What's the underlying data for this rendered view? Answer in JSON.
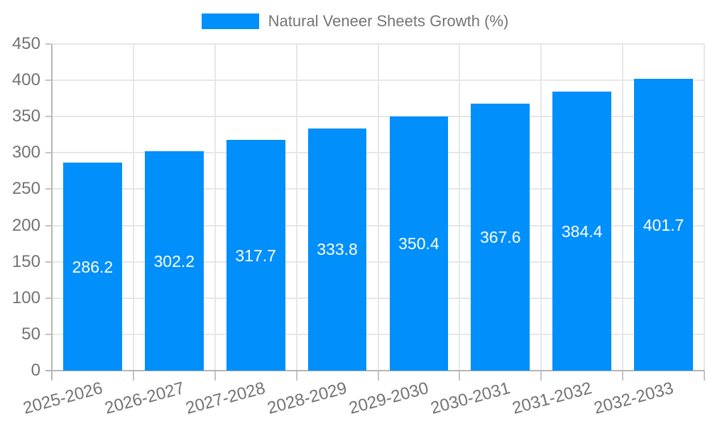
{
  "legend": {
    "label": "Natural Veneer Sheets Growth (%)"
  },
  "colors": {
    "bar": "#008FFB",
    "grid": "#e7e7e7",
    "axis_line": "#b6b6b6",
    "tick": "#c4c4c4",
    "axis_text": "#737373",
    "legend_text": "#757575",
    "value_label": "#ffffff"
  },
  "chart_data": {
    "type": "bar",
    "title": "Natural Veneer Sheets Growth (%)",
    "categories": [
      "2025-2026",
      "2026-2027",
      "2027-2028",
      "2028-2029",
      "2029-2030",
      "2030-2031",
      "2031-2032",
      "2032-2033"
    ],
    "values": [
      286.2,
      302.2,
      317.7,
      333.8,
      350.4,
      367.6,
      384.4,
      401.7
    ],
    "xlabel": "",
    "ylabel": "",
    "ylim": [
      0,
      450
    ],
    "ytick_step": 50,
    "ytick_labels": [
      "0",
      "50",
      "100",
      "150",
      "200",
      "250",
      "300",
      "350",
      "400",
      "450"
    ],
    "grid": true,
    "legend_position": "top",
    "value_labels": "inside-center"
  }
}
